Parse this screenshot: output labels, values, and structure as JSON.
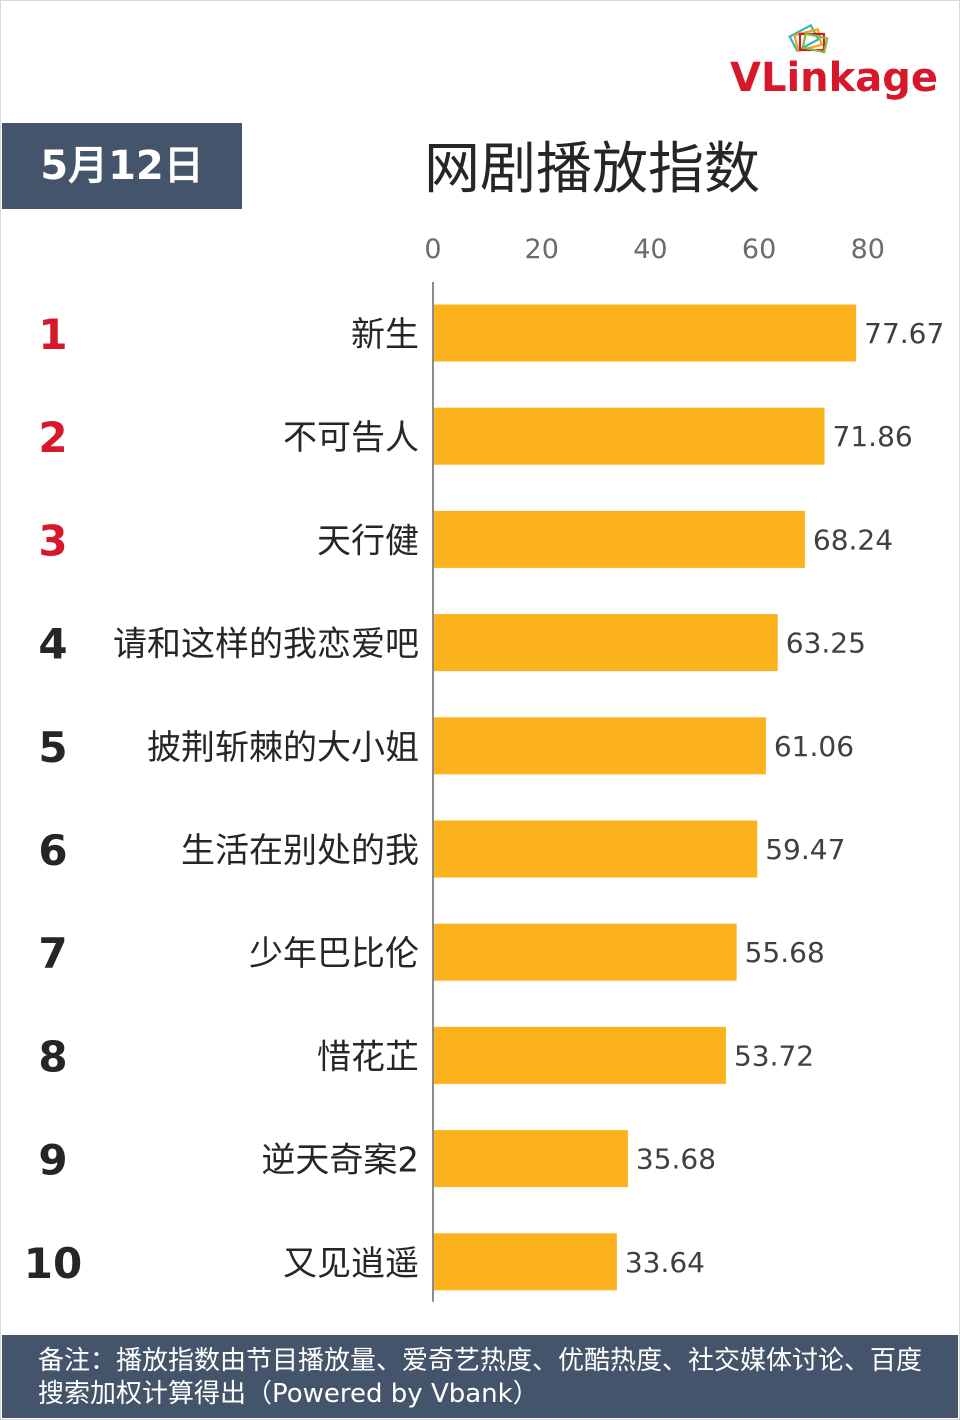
{
  "brand": {
    "name": "VLinkage"
  },
  "header": {
    "date": "5月12日",
    "title": "网剧播放指数"
  },
  "colors": {
    "bar": "#fbb21d",
    "rank_top": "#d7182a",
    "rank_other": "#262626",
    "badge_bg": "#44546a"
  },
  "chart_data": {
    "type": "bar",
    "orientation": "horizontal",
    "title": "网剧播放指数",
    "xlim": [
      0,
      80
    ],
    "xticks": [
      0,
      20,
      40,
      60,
      80
    ],
    "axis_position": "top",
    "grid": false,
    "ranks": [
      "1",
      "2",
      "3",
      "4",
      "5",
      "6",
      "7",
      "8",
      "9",
      "10"
    ],
    "categories": [
      "新生",
      "不可告人",
      "天行健",
      "请和这样的我恋爱吧",
      "披荆斩棘的大小姐",
      "生活在别处的我",
      "少年巴比伦",
      "惜花芷",
      "逆天奇案2",
      "又见逍遥"
    ],
    "values": [
      77.67,
      71.86,
      68.24,
      63.25,
      61.06,
      59.47,
      55.68,
      53.72,
      35.68,
      33.64
    ],
    "value_labels": [
      "77.67",
      "71.86",
      "68.24",
      "63.25",
      "61.06",
      "59.47",
      "55.68",
      "53.72",
      "35.68",
      "33.64"
    ]
  },
  "footer": {
    "note": "备注：播放指数由节目播放量、爱奇艺热度、优酷热度、社交媒体讨论、百度搜索加权计算得出（Powered by Vbank）"
  }
}
